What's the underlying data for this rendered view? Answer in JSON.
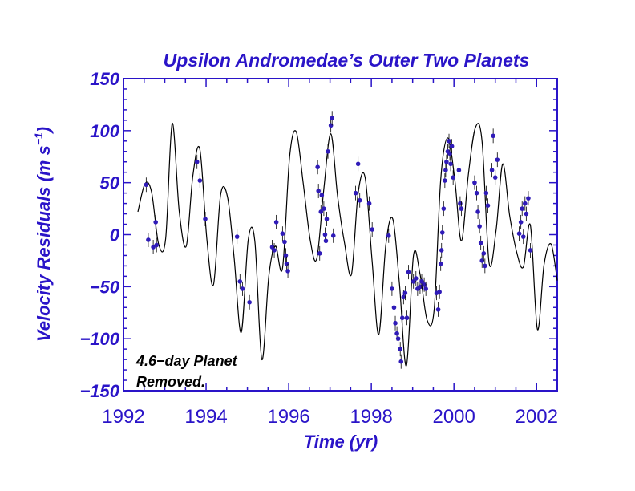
{
  "colors": {
    "text": "#2a14c8",
    "axis": "#2a14c8",
    "curve": "#000000",
    "point": "#2f1bb8",
    "errorbar": "#000000",
    "background": "#ffffff"
  },
  "chart_data": {
    "type": "scatter",
    "title": "Upsilon Andromedae’s Outer Two Planets",
    "xlabel": "Time  (yr)",
    "ylabel_main": "Velocity Residuals  (m s",
    "ylabel_sup": "−1",
    "ylabel_end": ")",
    "annotation_lines": [
      "4.6−day Planet",
      "Removed."
    ],
    "xlim": [
      1992,
      2002.5
    ],
    "ylim": [
      -150,
      150
    ],
    "xticks": [
      1992,
      1994,
      1996,
      1998,
      2000,
      2002
    ],
    "xtick_labels": [
      "1992",
      "1994",
      "1996",
      "1998",
      "2000",
      "2002"
    ],
    "yticks": [
      -150,
      -100,
      -50,
      0,
      50,
      100,
      150
    ],
    "ytick_labels": [
      "−150",
      "−100",
      "−50",
      "0",
      "50",
      "100",
      "150"
    ],
    "model_curve": {
      "x": [
        1992.35,
        1992.52,
        1992.68,
        1992.85,
        1993.02,
        1993.18,
        1993.35,
        1993.52,
        1993.68,
        1993.85,
        1994.02,
        1994.18,
        1994.35,
        1994.52,
        1994.68,
        1994.85,
        1995.02,
        1995.18,
        1995.35,
        1995.52,
        1995.68,
        1995.85,
        1996.02,
        1996.18,
        1996.35,
        1996.52,
        1996.68,
        1996.85,
        1997.02,
        1997.18,
        1997.35,
        1997.52,
        1997.68,
        1997.85,
        1998.02,
        1998.18,
        1998.35,
        1998.52,
        1998.68,
        1998.85,
        1999.02,
        1999.18,
        1999.35,
        1999.52,
        1999.68,
        1999.85,
        2000.02,
        2000.18,
        2000.35,
        2000.52,
        2000.68,
        2000.85,
        2001.02,
        2001.18,
        2001.35,
        2001.52,
        2001.68,
        2001.85,
        2002.02,
        2002.18,
        2002.35,
        2002.5
      ],
      "y": [
        22,
        49,
        41,
        -9,
        -4,
        107,
        22,
        -11,
        57,
        82,
        -5,
        -48,
        38,
        36,
        -23,
        -94,
        -5,
        -6,
        -120,
        -39,
        -11,
        -32,
        74,
        99,
        50,
        -5,
        -23,
        44,
        97,
        38,
        -8,
        -38,
        40,
        55,
        -26,
        -96,
        -10,
        15,
        -47,
        -126,
        -20,
        -38,
        -82,
        -72,
        53,
        93,
        53,
        -6,
        58,
        103,
        90,
        -27,
        4,
        68,
        18,
        -17,
        -31,
        9,
        -91,
        -29,
        -9,
        -44
      ]
    },
    "observations": {
      "x": [
        1992.55,
        1992.6,
        1992.72,
        1992.78,
        1992.8,
        1993.78,
        1993.85,
        1993.98,
        1994.75,
        1994.82,
        1994.88,
        1995.05,
        1995.6,
        1995.65,
        1995.7,
        1995.85,
        1995.9,
        1995.93,
        1995.95,
        1995.98,
        1996.7,
        1996.72,
        1996.75,
        1996.78,
        1996.8,
        1996.85,
        1996.88,
        1996.9,
        1996.92,
        1996.95,
        1997.02,
        1997.05,
        1997.08,
        1997.62,
        1997.68,
        1997.72,
        1997.95,
        1998.02,
        1998.42,
        1998.5,
        1998.55,
        1998.58,
        1998.62,
        1998.65,
        1998.7,
        1998.72,
        1998.75,
        1998.78,
        1998.82,
        1998.86,
        1998.9,
        1999.02,
        1999.08,
        1999.12,
        1999.18,
        1999.22,
        1999.28,
        1999.32,
        1999.58,
        1999.62,
        1999.65,
        1999.68,
        1999.7,
        1999.72,
        1999.75,
        1999.78,
        1999.8,
        1999.82,
        1999.85,
        1999.88,
        1999.9,
        1999.92,
        1999.95,
        1999.98,
        2000.12,
        2000.15,
        2000.18,
        2000.5,
        2000.55,
        2000.58,
        2000.62,
        2000.65,
        2000.68,
        2000.72,
        2000.75,
        2000.78,
        2000.82,
        2000.92,
        2000.95,
        2001.0,
        2001.05,
        2001.58,
        2001.62,
        2001.65,
        2001.68,
        2001.72,
        2001.75,
        2001.8,
        2001.85
      ],
      "y": [
        48,
        -5,
        -12,
        12,
        -10,
        70,
        52,
        15,
        -2,
        -45,
        -52,
        -65,
        -12,
        -15,
        12,
        1,
        -7,
        -20,
        -28,
        -35,
        65,
        42,
        -18,
        22,
        38,
        25,
        0,
        -6,
        15,
        80,
        105,
        112,
        -1,
        40,
        68,
        33,
        30,
        5,
        -1,
        -52,
        -70,
        -85,
        -95,
        -100,
        -110,
        -122,
        -80,
        -60,
        -56,
        -80,
        -36,
        -45,
        -42,
        -52,
        -50,
        -45,
        -48,
        -52,
        -56,
        -72,
        -55,
        -28,
        -15,
        2,
        25,
        52,
        62,
        70,
        80,
        90,
        78,
        68,
        85,
        55,
        62,
        30,
        25,
        50,
        40,
        22,
        8,
        -8,
        -25,
        -18,
        -30,
        40,
        28,
        62,
        95,
        55,
        72,
        1,
        12,
        25,
        -2,
        30,
        20,
        35,
        -15
      ]
    }
  }
}
